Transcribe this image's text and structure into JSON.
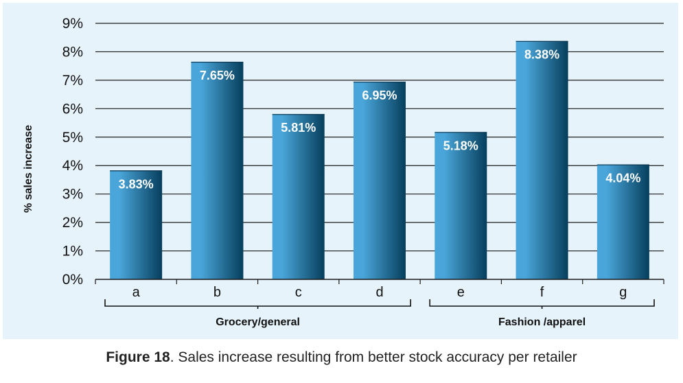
{
  "chart_data": {
    "type": "bar",
    "categories": [
      "a",
      "b",
      "c",
      "d",
      "e",
      "f",
      "g"
    ],
    "values": [
      3.83,
      7.65,
      5.81,
      6.95,
      5.18,
      8.38,
      4.04
    ],
    "value_labels": [
      "3.83%",
      "7.65%",
      "5.81%",
      "6.95%",
      "5.18%",
      "8.38%",
      "4.04%"
    ],
    "ylabel": "% sales increase",
    "ylim": [
      0,
      9
    ],
    "yticks": [
      "0%",
      "1%",
      "2%",
      "3%",
      "4%",
      "5%",
      "6%",
      "7%",
      "8%",
      "9%"
    ],
    "grid": true,
    "groups": [
      {
        "label": "Grocery/general",
        "categories": [
          "a",
          "b",
          "c",
          "d"
        ]
      },
      {
        "label": "Fashion /apparel",
        "categories": [
          "e",
          "f",
          "g"
        ]
      }
    ],
    "colors": {
      "panel_background": "#e7f3fb",
      "bar_light": "#4aa6da",
      "bar_dark": "#063e5c",
      "gridline": "#1a1a1a",
      "value_label": "#ffffff"
    }
  },
  "caption": {
    "label": "Figure 18",
    "text": ". Sales increase resulting from better stock accuracy per retailer"
  }
}
